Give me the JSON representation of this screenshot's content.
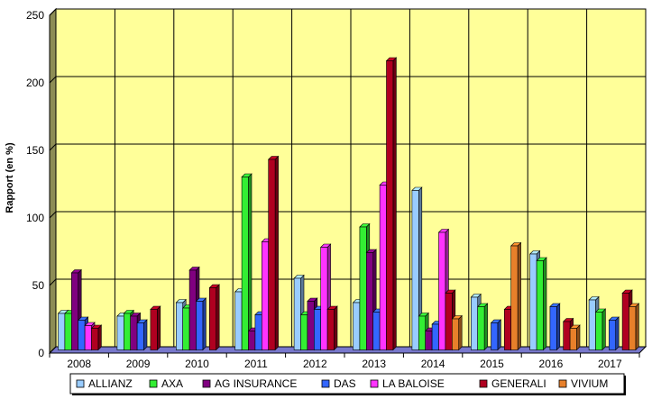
{
  "chart_data": {
    "type": "bar",
    "title": "",
    "xlabel": "",
    "ylabel": "Rapport (en %)",
    "ylim": [
      0,
      250
    ],
    "yticks": [
      0,
      50,
      100,
      150,
      200,
      250
    ],
    "grid": true,
    "legend_position": "bottom",
    "categories": [
      "2008",
      "2009",
      "2010",
      "2011",
      "2012",
      "2013",
      "2014",
      "2015",
      "2016",
      "2017"
    ],
    "series": [
      {
        "name": "ALLIANZ",
        "color": "#99ccff",
        "values": [
          27,
          25,
          35,
          43,
          53,
          35,
          118,
          39,
          71,
          37
        ]
      },
      {
        "name": "AXA",
        "color": "#33ee33",
        "values": [
          27,
          27,
          31,
          128,
          26,
          91,
          25,
          32,
          66,
          28
        ]
      },
      {
        "name": "AG INSURANCE",
        "color": "#800080",
        "values": [
          57,
          25,
          59,
          14,
          36,
          72,
          14,
          0,
          0,
          0
        ]
      },
      {
        "name": "DAS",
        "color": "#3366ff",
        "values": [
          22,
          20,
          36,
          26,
          30,
          28,
          19,
          20,
          32,
          22
        ]
      },
      {
        "name": "LA BALOISE",
        "color": "#ff33ff",
        "values": [
          18,
          0,
          0,
          80,
          76,
          122,
          87,
          0,
          0,
          0
        ]
      },
      {
        "name": "GENERALI",
        "color": "#b00020",
        "values": [
          16,
          30,
          46,
          141,
          30,
          214,
          42,
          30,
          21,
          42
        ]
      },
      {
        "name": "VIVIUM",
        "color": "#e8802a",
        "values": [
          0,
          0,
          0,
          0,
          0,
          0,
          23,
          77,
          16,
          32
        ]
      }
    ],
    "colors": {
      "plot_background": "#ffff99",
      "side_wall": "#8d8d55",
      "floor": "#7878cc",
      "grid": "#000000"
    }
  }
}
